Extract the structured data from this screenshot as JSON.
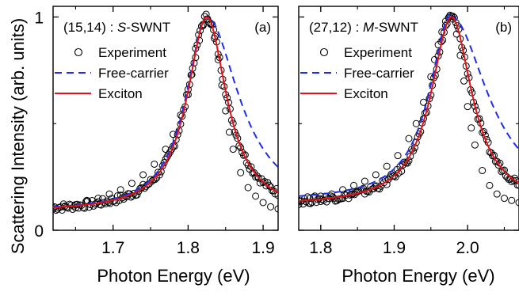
{
  "figure": {
    "ylabel": "Scattering Intensity (arb. units)"
  },
  "chart_data": [
    {
      "type": "scatter",
      "panel_label": "(a)",
      "annotation_prefix": "(15,14) : ",
      "annotation_italic": "S",
      "annotation_suffix": "-SWNT",
      "xlabel": "Photon Energy (eV)",
      "xlim": [
        1.62,
        1.92
      ],
      "ylim": [
        0,
        1.05
      ],
      "xticks": [
        1.7,
        1.8,
        1.9
      ],
      "xtick_labels": [
        "1.7",
        "1.8",
        "1.9"
      ],
      "yticks": [
        0,
        1
      ],
      "ytick_labels": [
        "0",
        "1"
      ],
      "legend": [
        "Experiment",
        "Free-carrier",
        "Exciton"
      ],
      "peak": 1.825,
      "baseline": 0.085,
      "exciton_gamma": 0.032,
      "freecarrier_gamma_right": 0.052,
      "series": [
        {
          "name": "Experiment",
          "marker": "open-circle",
          "color": "#000000",
          "x": [
            1.62,
            1.635,
            1.65,
            1.665,
            1.68,
            1.695,
            1.71,
            1.725,
            1.74,
            1.755,
            1.77,
            1.78,
            1.79,
            1.8,
            1.805,
            1.81,
            1.815,
            1.82,
            1.825,
            1.83,
            1.835,
            1.84,
            1.845,
            1.85,
            1.855,
            1.86,
            1.87,
            1.88,
            1.89,
            1.9,
            1.91,
            1.92
          ],
          "y": [
            0.1,
            0.11,
            0.12,
            0.14,
            0.15,
            0.17,
            0.19,
            0.22,
            0.26,
            0.31,
            0.38,
            0.45,
            0.54,
            0.66,
            0.73,
            0.81,
            0.89,
            0.96,
            0.99,
            0.97,
            0.9,
            0.8,
            0.68,
            0.56,
            0.46,
            0.38,
            0.27,
            0.2,
            0.16,
            0.13,
            0.11,
            0.1
          ]
        },
        {
          "name": "Free-carrier",
          "style": "dashed",
          "color": "#1f2ee6"
        },
        {
          "name": "Exciton",
          "style": "solid",
          "color": "#e3101a"
        }
      ]
    },
    {
      "type": "scatter",
      "panel_label": "(b)",
      "annotation_prefix": "(27,12) : ",
      "annotation_italic": "M",
      "annotation_suffix": "-SWNT",
      "xlabel": "Photon Energy (eV)",
      "xlim": [
        1.77,
        2.07
      ],
      "ylim": [
        0,
        1.05
      ],
      "xticks": [
        1.8,
        1.9,
        2.0
      ],
      "xtick_labels": [
        "1.8",
        "1.9",
        "2.0"
      ],
      "yticks": [
        0,
        1
      ],
      "ytick_labels": [
        "",
        ""
      ],
      "legend": [
        "Experiment",
        "Free-carrier",
        "Exciton"
      ],
      "peak": 1.978,
      "baseline": 0.115,
      "exciton_gamma": 0.034,
      "freecarrier_gamma_right": 0.06,
      "series": [
        {
          "name": "Experiment",
          "marker": "open-circle",
          "color": "#000000",
          "x": [
            1.77,
            1.785,
            1.8,
            1.815,
            1.83,
            1.845,
            1.86,
            1.875,
            1.89,
            1.905,
            1.92,
            1.93,
            1.94,
            1.95,
            1.955,
            1.96,
            1.965,
            1.97,
            1.975,
            1.98,
            1.985,
            1.99,
            1.995,
            2.0,
            2.005,
            2.01,
            2.02,
            2.03,
            2.04,
            2.05,
            2.06,
            2.07
          ],
          "y": [
            0.14,
            0.15,
            0.16,
            0.17,
            0.19,
            0.21,
            0.23,
            0.26,
            0.3,
            0.35,
            0.43,
            0.5,
            0.6,
            0.72,
            0.8,
            0.87,
            0.93,
            0.98,
            1.0,
            0.99,
            0.92,
            0.82,
            0.7,
            0.58,
            0.48,
            0.4,
            0.28,
            0.21,
            0.17,
            0.15,
            0.14,
            0.13
          ]
        },
        {
          "name": "Free-carrier",
          "style": "dashed",
          "color": "#1f2ee6"
        },
        {
          "name": "Exciton",
          "style": "solid",
          "color": "#e3101a"
        }
      ]
    }
  ]
}
